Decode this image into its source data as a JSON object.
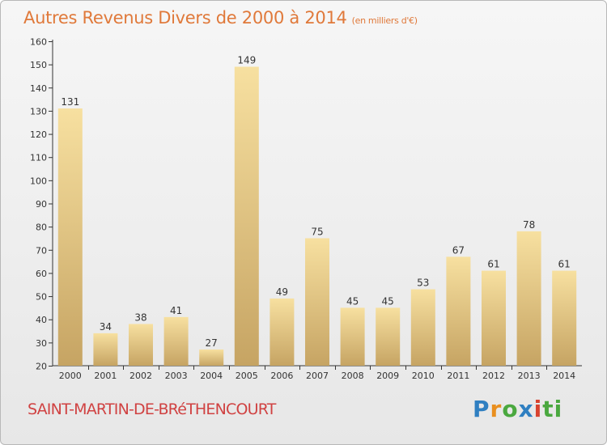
{
  "header": {
    "title": "Autres Revenus Divers de 2000 à 2014",
    "unit": "(en milliers d'€)"
  },
  "footer": {
    "commune": "SAINT-MARTIN-DE-BRéTHENCOURT",
    "logo_letters": [
      "P",
      "r",
      "o",
      "x",
      "i",
      "ti"
    ]
  },
  "colors": {
    "title": "#e0793a",
    "commune": "#d04242",
    "bar_top": "#f7e0a0",
    "bar_bottom": "#c6a463",
    "axis": "#333333"
  },
  "chart_data": {
    "type": "bar",
    "title": "Autres Revenus Divers de 2000 à 2014",
    "xlabel": "",
    "ylabel": "",
    "categories": [
      "2000",
      "2001",
      "2002",
      "2003",
      "2004",
      "2005",
      "2006",
      "2007",
      "2008",
      "2009",
      "2010",
      "2011",
      "2012",
      "2013",
      "2014"
    ],
    "values": [
      131,
      34,
      38,
      41,
      27,
      149,
      49,
      75,
      45,
      45,
      53,
      67,
      61,
      78,
      61
    ],
    "ylim": [
      20,
      160
    ],
    "yticks": [
      20,
      30,
      40,
      50,
      60,
      70,
      80,
      90,
      100,
      110,
      120,
      130,
      140,
      150,
      160
    ],
    "grid": false,
    "legend": "none"
  }
}
